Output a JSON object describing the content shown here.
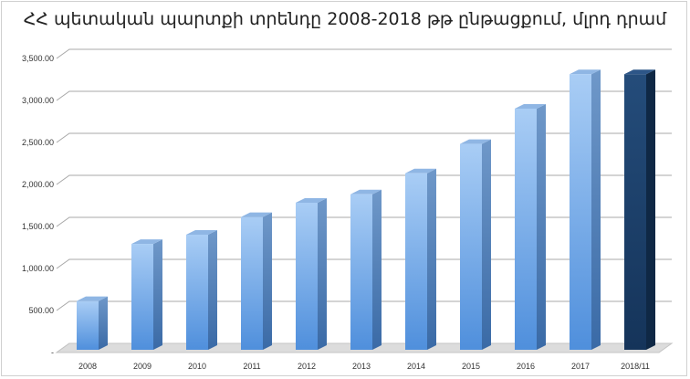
{
  "colors": {
    "bar": "#7eb3ea",
    "bar_highlight": "#1c3d66",
    "grid": "#a8a8a8",
    "floor": "#dcdcdc"
  },
  "chart_data": {
    "type": "bar",
    "title": "ՀՀ պետական պարտքի տրենդը 2008-2018 թթ ընթացքում, մլրդ դրամ",
    "xlabel": "",
    "ylabel": "",
    "categories": [
      "2008",
      "2009",
      "2010",
      "2011",
      "2012",
      "2013",
      "2014",
      "2015",
      "2016",
      "2017",
      "2018/11"
    ],
    "values": [
      580,
      1260,
      1370,
      1580,
      1750,
      1850,
      2100,
      2450,
      2870,
      3280,
      3280
    ],
    "highlight_category": "2018/11",
    "ylim": [
      0,
      3500
    ],
    "yticks": [
      0,
      500,
      1000,
      1500,
      2000,
      2500,
      3000,
      3500
    ],
    "ytick_labels": [
      "-",
      "500.00",
      "1,000.00",
      "1,500.00",
      "2,000.00",
      "2,500.00",
      "3,000.00",
      "3,500.00"
    ],
    "grid": true,
    "legend": "none",
    "style": "3d-column"
  }
}
